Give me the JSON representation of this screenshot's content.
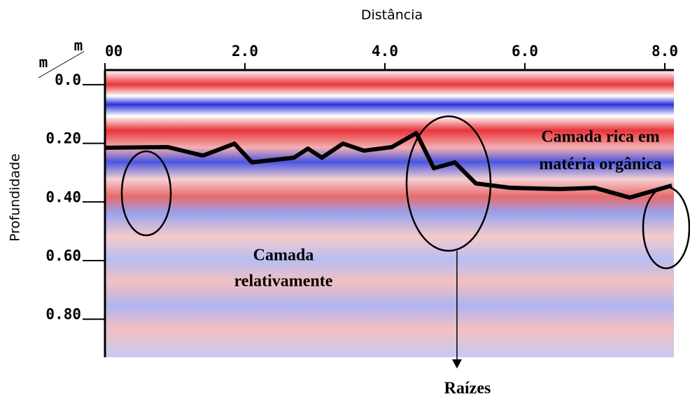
{
  "chart_data": {
    "type": "radargram",
    "x_label": "Distância",
    "y_label": "Profundidade",
    "x_unit": "m",
    "y_unit": "m",
    "xlim": [
      0,
      8.13
    ],
    "ylim": [
      -0.05,
      0.93
    ],
    "xticks": [
      {
        "value": 0,
        "label": "00"
      },
      {
        "value": 2,
        "label": "2.0"
      },
      {
        "value": 4,
        "label": "4.0"
      },
      {
        "value": 6,
        "label": "6.0"
      },
      {
        "value": 8,
        "label": "8.0"
      }
    ],
    "yticks": [
      {
        "value": 0,
        "label": "0.0"
      },
      {
        "value": 0.2,
        "label": "0.20"
      },
      {
        "value": 0.4,
        "label": "0.40"
      },
      {
        "value": 0.6,
        "label": "0.60"
      },
      {
        "value": 0.8,
        "label": "0.80"
      }
    ],
    "series": [
      {
        "color": "#000000",
        "x": [
          0,
          0.9,
          1.4,
          1.85,
          2.1,
          2.7,
          2.9,
          3.1,
          3.4,
          3.7,
          4.1,
          4.45,
          4.7,
          5.0,
          5.3,
          5.8,
          6.5,
          7.0,
          7.5,
          8.1
        ],
        "values": [
          0.215,
          0.213,
          0.242,
          0.201,
          0.265,
          0.249,
          0.218,
          0.249,
          0.201,
          0.225,
          0.213,
          0.165,
          0.285,
          0.265,
          0.337,
          0.352,
          0.356,
          0.352,
          0.385,
          0.344
        ]
      }
    ],
    "annotations": [
      {
        "lines": [
          "Camada rica em",
          "matéria orgânica"
        ]
      },
      {
        "lines": [
          "Camada",
          "relativamente"
        ]
      },
      {
        "lines": [
          "Raízes"
        ]
      }
    ]
  }
}
